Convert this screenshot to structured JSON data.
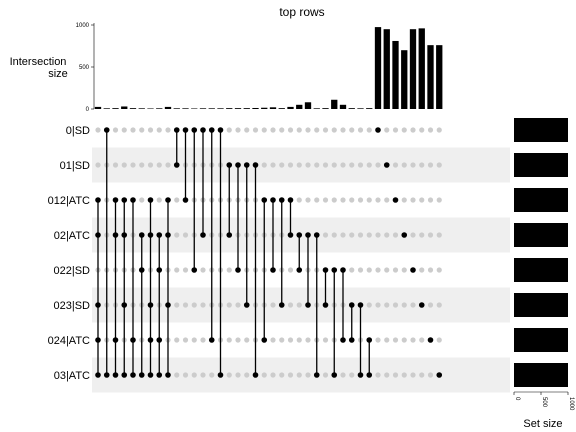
{
  "chart_data": {
    "type": "bar",
    "title": "top rows",
    "ylabel_lines": [
      "Intersection",
      "size"
    ],
    "xlabel": "Set size",
    "ylim": [
      0,
      1000
    ],
    "yticks": [
      0,
      500,
      1000
    ],
    "set_size_ticks": [
      0,
      500,
      1000
    ],
    "set_size_lim": [
      0,
      1000
    ],
    "sets": [
      "0|SD",
      "01|SD",
      "012|ATC",
      "02|ATC",
      "022|SD",
      "023|SD",
      "024|ATC",
      "03|ATC"
    ],
    "set_sizes": [
      1000,
      1000,
      1000,
      1000,
      1000,
      1000,
      1000,
      1000
    ],
    "intersections": [
      {
        "members": [
          2,
          3,
          5,
          6,
          7
        ],
        "size": 25
      },
      {
        "members": [
          0,
          7
        ],
        "size": 8
      },
      {
        "members": [
          2,
          3,
          6,
          7
        ],
        "size": 10
      },
      {
        "members": [
          2,
          3,
          5,
          7
        ],
        "size": 30
      },
      {
        "members": [
          2,
          6,
          7
        ],
        "size": 10
      },
      {
        "members": [
          3,
          4,
          7
        ],
        "size": 8
      },
      {
        "members": [
          2,
          3,
          5,
          6,
          7
        ],
        "size": 6
      },
      {
        "members": [
          3,
          4,
          6,
          7
        ],
        "size": 8
      },
      {
        "members": [
          2,
          3,
          5,
          7
        ],
        "size": 25
      },
      {
        "members": [
          0,
          1
        ],
        "size": 8
      },
      {
        "members": [
          0,
          2
        ],
        "size": 8
      },
      {
        "members": [
          0,
          4
        ],
        "size": 6
      },
      {
        "members": [
          0,
          3
        ],
        "size": 8
      },
      {
        "members": [
          0,
          6
        ],
        "size": 8
      },
      {
        "members": [
          0,
          7
        ],
        "size": 8
      },
      {
        "members": [
          1,
          3
        ],
        "size": 10
      },
      {
        "members": [
          1,
          4
        ],
        "size": 10
      },
      {
        "members": [
          1,
          5
        ],
        "size": 10
      },
      {
        "members": [
          1,
          7
        ],
        "size": 12
      },
      {
        "members": [
          2,
          6
        ],
        "size": 15
      },
      {
        "members": [
          2,
          4
        ],
        "size": 20
      },
      {
        "members": [
          2,
          5
        ],
        "size": 10
      },
      {
        "members": [
          2,
          3
        ],
        "size": 25
      },
      {
        "members": [
          3,
          4
        ],
        "size": 50
      },
      {
        "members": [
          3,
          5
        ],
        "size": 80
      },
      {
        "members": [
          3,
          7
        ],
        "size": 8
      },
      {
        "members": [
          4,
          5
        ],
        "size": 10
      },
      {
        "members": [
          4,
          7
        ],
        "size": 110
      },
      {
        "members": [
          4,
          6
        ],
        "size": 50
      },
      {
        "members": [
          5,
          6
        ],
        "size": 10
      },
      {
        "members": [
          5,
          7
        ],
        "size": 8
      },
      {
        "members": [
          6,
          7
        ],
        "size": 10
      },
      {
        "members": [
          0
        ],
        "size": 975
      },
      {
        "members": [
          1
        ],
        "size": 950
      },
      {
        "members": [
          2
        ],
        "size": 810
      },
      {
        "members": [
          3
        ],
        "size": 700
      },
      {
        "members": [
          4
        ],
        "size": 950
      },
      {
        "members": [
          5
        ],
        "size": 960
      },
      {
        "members": [
          6
        ],
        "size": 760
      },
      {
        "members": [
          7
        ],
        "size": 760
      }
    ],
    "colors": {
      "bar": "#000000",
      "dot_on": "#000000",
      "dot_off": "#cccccc",
      "stripe": "#efefef"
    }
  }
}
